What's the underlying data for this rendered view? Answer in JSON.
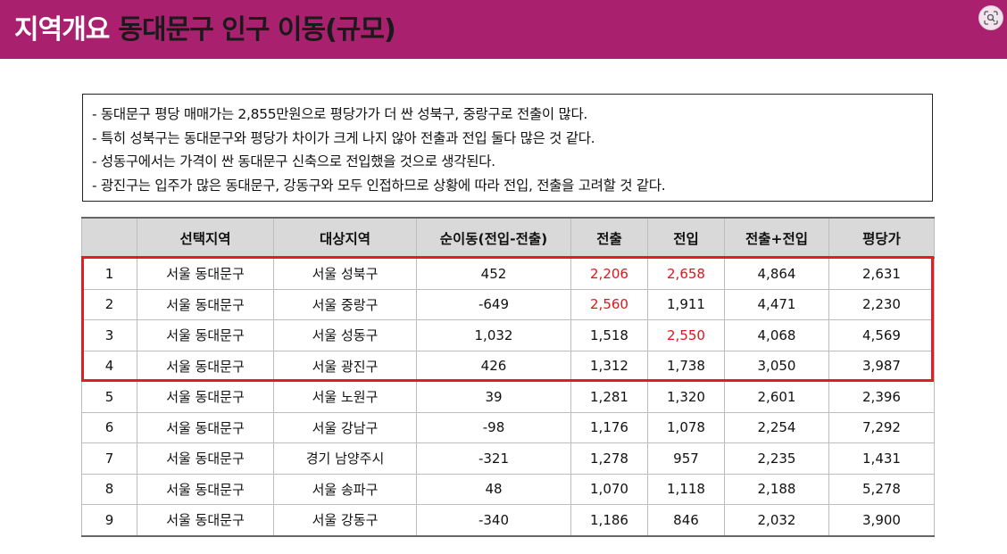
{
  "header": {
    "title_prefix": "지역개요",
    "title_main": "동대문구 인구 이동(규모)"
  },
  "notes": [
    "- 동대문구 평당 매매가는 2,855만원으로 평당가가 더 싼 성북구, 중랑구로 전출이 많다.",
    "- 특히 성북구는 동대문구와 평당가 차이가 크게 나지 않아 전출과 전입 둘다 많은 것 같다.",
    "- 성동구에서는 가격이 싼 동대문구 신축으로 전입했을 것으로 생각된다.",
    "- 광진구는 입주가 많은 동대문구, 강동구와 모두 인접하므로 상황에 따라 전입, 전출을 고려할 것 같다."
  ],
  "table": {
    "headers": [
      "",
      "선택지역",
      "대상지역",
      "순이동(전입-전출)",
      "전출",
      "전입",
      "전출+전입",
      "평당가"
    ],
    "rows": [
      [
        "1",
        "서울 동대문구",
        "서울 성북구",
        "452",
        "2,206",
        "2,658",
        "4,864",
        "2,631"
      ],
      [
        "2",
        "서울 동대문구",
        "서울 중랑구",
        "-649",
        "2,560",
        "1,911",
        "4,471",
        "2,230"
      ],
      [
        "3",
        "서울 동대문구",
        "서울 성동구",
        "1,032",
        "1,518",
        "2,550",
        "4,068",
        "4,569"
      ],
      [
        "4",
        "서울 동대문구",
        "서울 광진구",
        "426",
        "1,312",
        "1,738",
        "3,050",
        "3,987"
      ],
      [
        "5",
        "서울 동대문구",
        "서울 노원구",
        "39",
        "1,281",
        "1,320",
        "2,601",
        "2,396"
      ],
      [
        "6",
        "서울 동대문구",
        "서울 강남구",
        "-98",
        "1,176",
        "1,078",
        "2,254",
        "7,292"
      ],
      [
        "7",
        "서울 동대문구",
        "경기 남양주시",
        "-321",
        "1,278",
        "957",
        "2,235",
        "1,431"
      ],
      [
        "8",
        "서울 동대문구",
        "서울 송파구",
        "48",
        "1,070",
        "1,118",
        "2,188",
        "5,278"
      ],
      [
        "9",
        "서울 동대문구",
        "서울 강동구",
        "-340",
        "1,186",
        "846",
        "2,032",
        "3,900"
      ]
    ],
    "red_cells": [
      [
        0,
        4
      ],
      [
        0,
        5
      ],
      [
        1,
        4
      ],
      [
        2,
        5
      ]
    ]
  },
  "colors": {
    "header_bg": "#a9206f",
    "highlight_border": "#e02020",
    "emphasis_text": "#e0161b",
    "table_header_bg": "#d9d9d9"
  },
  "icons": {
    "top_right_button": "image-search-icon"
  }
}
